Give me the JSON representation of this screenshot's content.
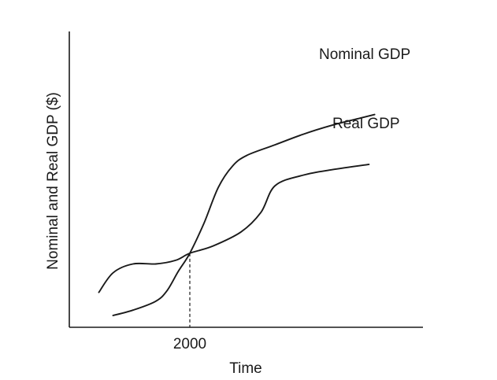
{
  "chart_data": {
    "type": "line",
    "xlabel": "Time",
    "ylabel": "Nominal and Real GDP ($)",
    "x_ticks": [
      "2000"
    ],
    "reference_x": "2000",
    "series": [
      {
        "name": "Nominal GDP",
        "points": [
          [
            -0.27,
            0.0
          ],
          [
            -0.2,
            0.03
          ],
          [
            -0.12,
            0.08
          ],
          [
            -0.08,
            0.14
          ],
          [
            -0.04,
            0.25
          ],
          [
            0.0,
            0.35
          ],
          [
            0.05,
            0.52
          ],
          [
            0.1,
            0.72
          ],
          [
            0.15,
            0.84
          ],
          [
            0.2,
            0.9
          ],
          [
            0.3,
            0.96
          ],
          [
            0.4,
            1.02
          ],
          [
            0.5,
            1.07
          ],
          [
            0.6,
            1.11
          ],
          [
            0.65,
            1.13
          ]
        ]
      },
      {
        "name": "Real GDP",
        "points": [
          [
            -0.32,
            0.13
          ],
          [
            -0.27,
            0.24
          ],
          [
            -0.2,
            0.29
          ],
          [
            -0.12,
            0.29
          ],
          [
            -0.05,
            0.31
          ],
          [
            0.0,
            0.35
          ],
          [
            0.08,
            0.39
          ],
          [
            0.18,
            0.47
          ],
          [
            0.25,
            0.58
          ],
          [
            0.3,
            0.73
          ],
          [
            0.4,
            0.79
          ],
          [
            0.5,
            0.82
          ],
          [
            0.63,
            0.85
          ]
        ]
      }
    ],
    "grid": false,
    "legend": "none"
  }
}
